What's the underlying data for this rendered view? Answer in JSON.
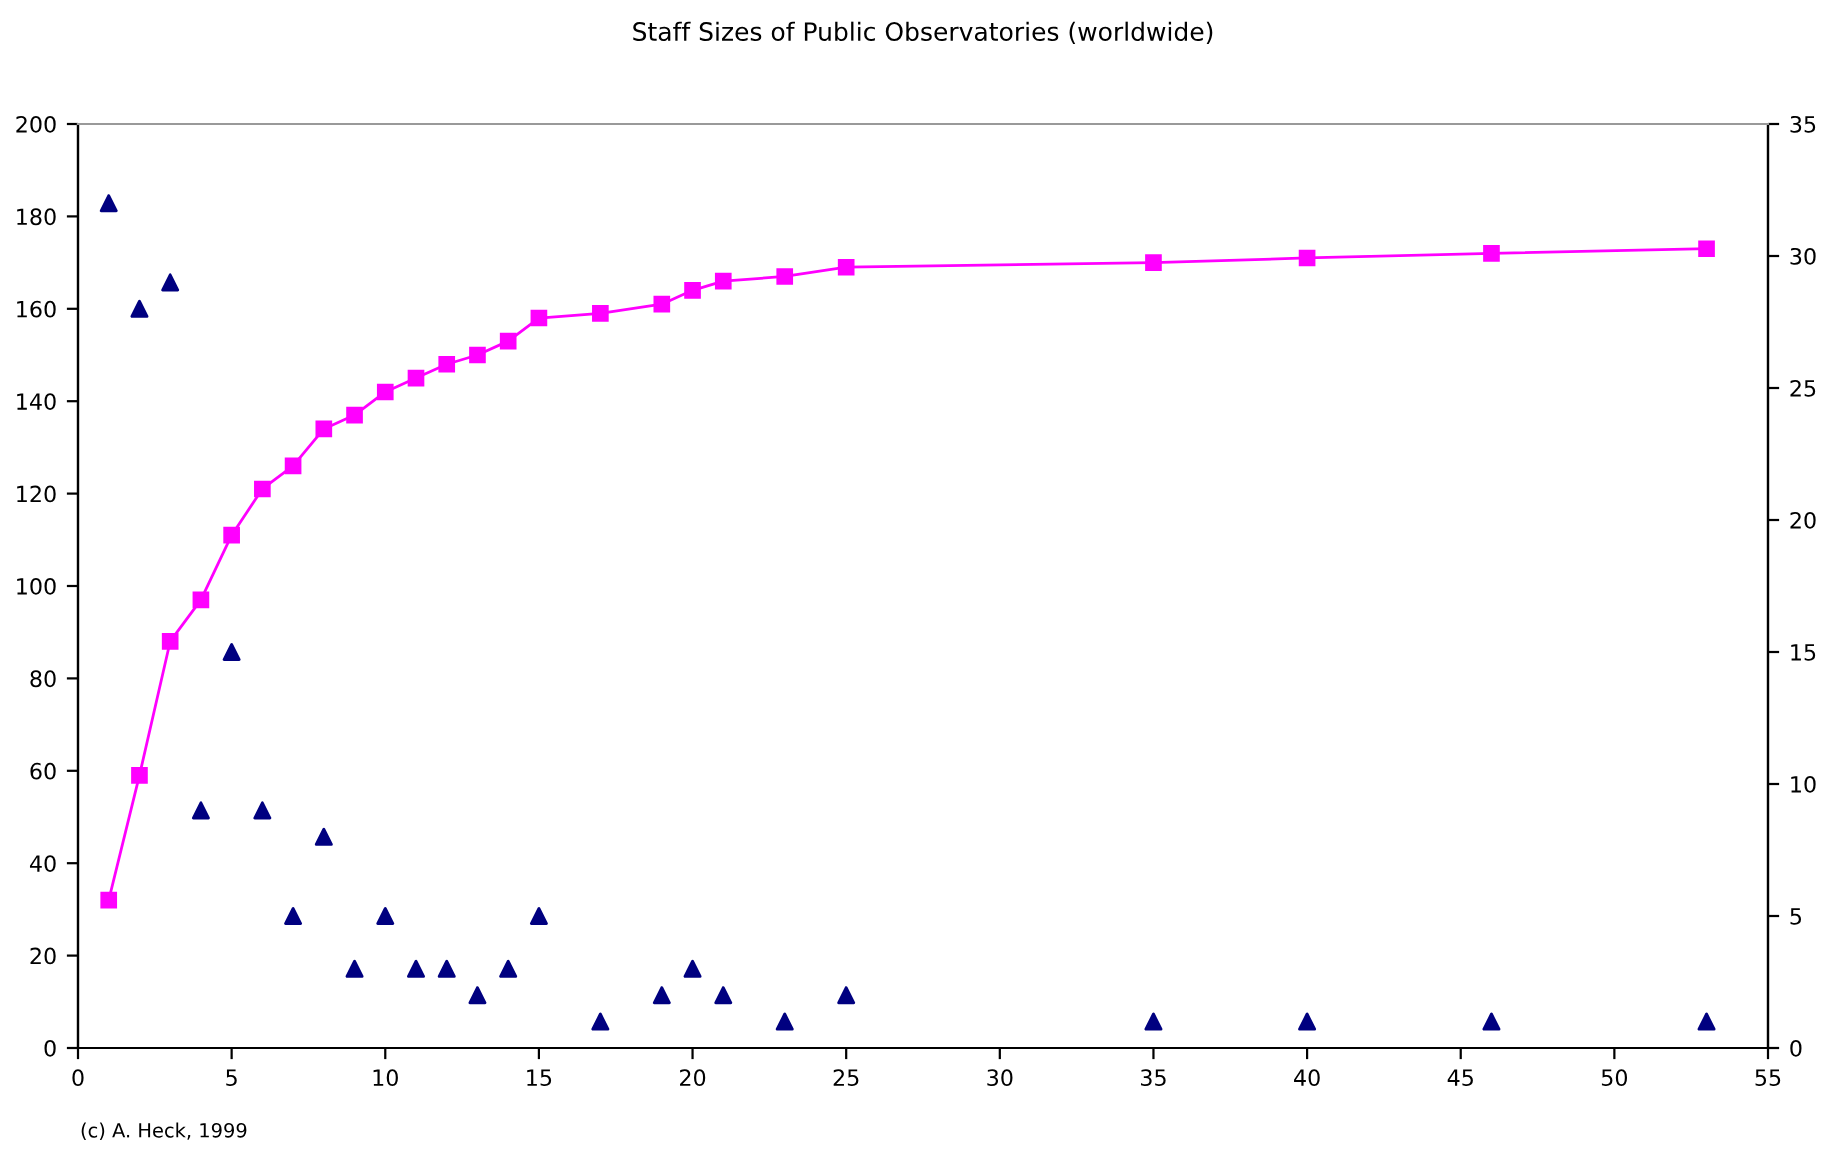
{
  "chart_data": {
    "type": "line",
    "title": "Staff Sizes of Public Observatories (worldwide)",
    "annotations": [
      "(c) A. Heck, 1999"
    ],
    "xlim": [
      0,
      55
    ],
    "xticks": [
      0,
      5,
      10,
      15,
      20,
      25,
      30,
      35,
      40,
      45,
      50,
      55
    ],
    "ylim": [
      0,
      200
    ],
    "yticks": [
      0,
      20,
      40,
      60,
      80,
      100,
      120,
      140,
      160,
      180,
      200
    ],
    "y2lim": [
      0,
      35
    ],
    "y2ticks": [
      0,
      5,
      10,
      15,
      20,
      25,
      30,
      35
    ],
    "grid": false,
    "series": [
      {
        "marker": "square",
        "color": "#ff00ff",
        "x": [
          1,
          2,
          3,
          4,
          5,
          6,
          7,
          8,
          9,
          10,
          11,
          12,
          13,
          14,
          15,
          17,
          19,
          20,
          21,
          23,
          25,
          35,
          40,
          46,
          53
        ],
        "values": [
          32,
          59,
          88,
          97,
          111,
          121,
          126,
          134,
          137,
          142,
          145,
          148,
          150,
          153,
          158,
          159,
          161,
          164,
          166,
          167,
          169,
          170,
          171,
          172,
          173
        ]
      },
      {
        "type": "scatter",
        "marker": "triangle",
        "axis": "y2",
        "color": "#000080",
        "x": [
          1,
          2,
          3,
          4,
          5,
          6,
          7,
          8,
          9,
          10,
          11,
          12,
          13,
          14,
          15,
          17,
          19,
          20,
          21,
          23,
          25,
          35,
          40,
          46,
          53
        ],
        "values": [
          32,
          28,
          29,
          9,
          15,
          9,
          5,
          8,
          3,
          5,
          3,
          3,
          2,
          3,
          5,
          1,
          2,
          3,
          2,
          1,
          2,
          1,
          1,
          1,
          1
        ]
      }
    ]
  }
}
